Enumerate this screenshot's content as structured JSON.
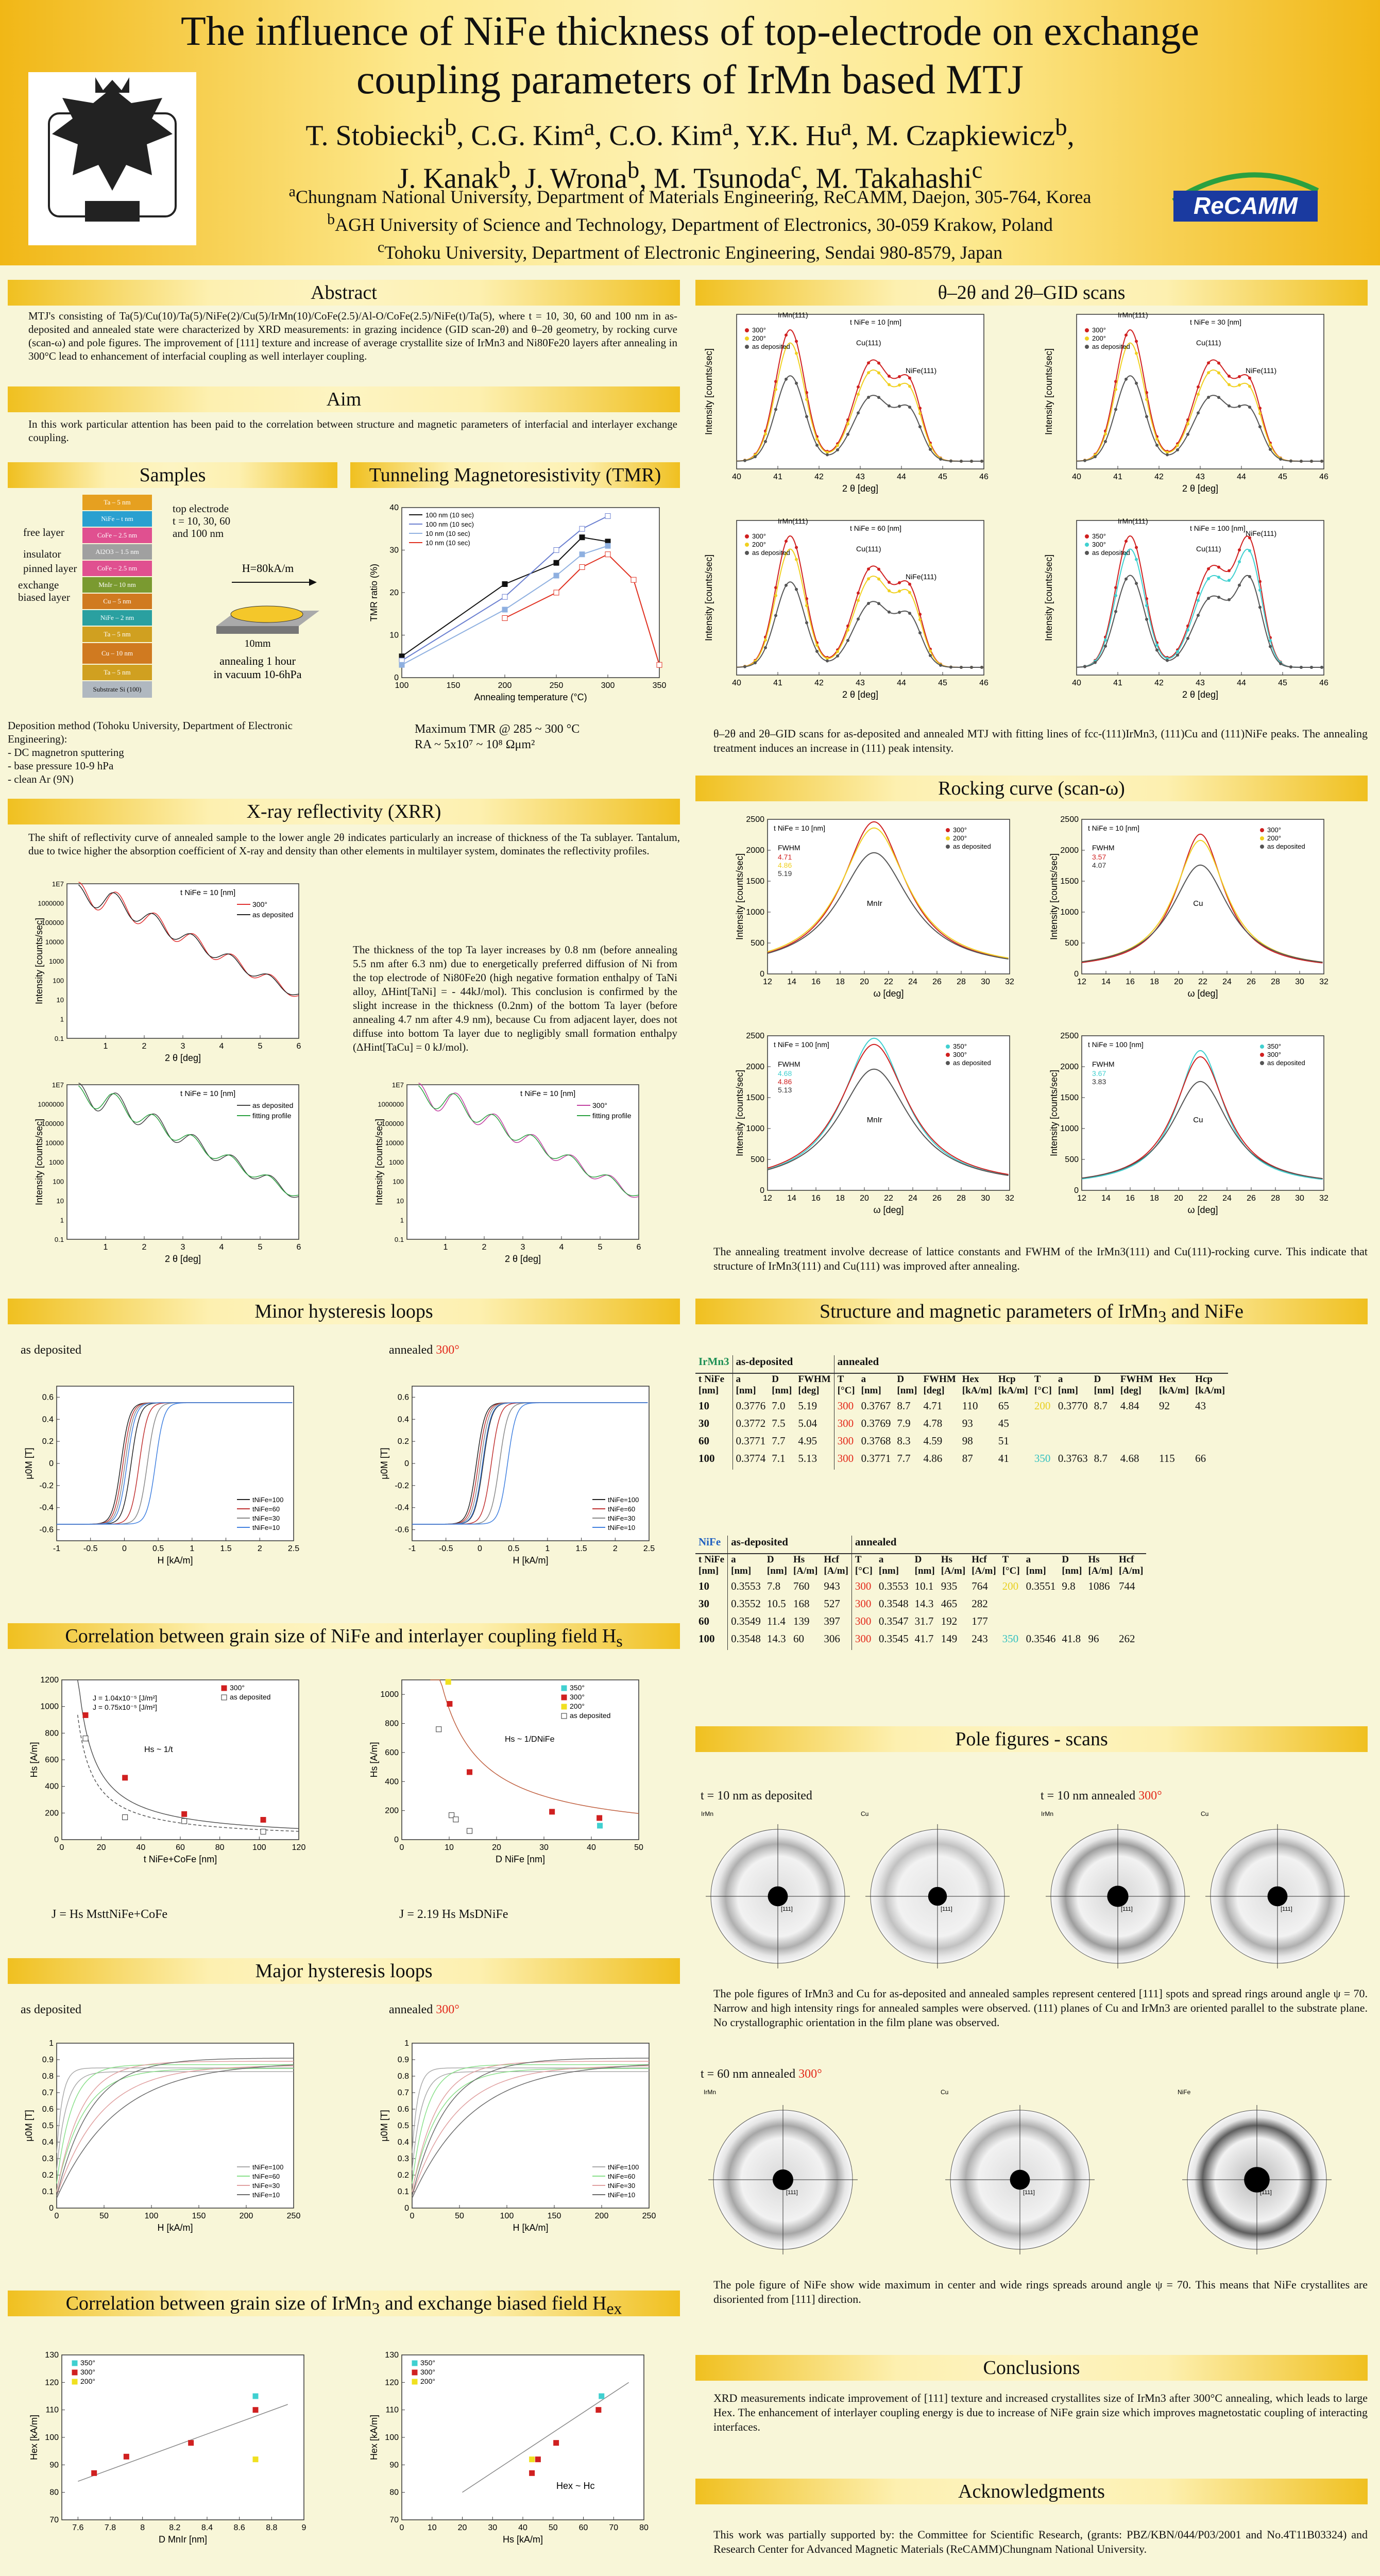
{
  "header": {
    "title_line1": "The influence of NiFe thickness of top-electrode on exchange",
    "title_line2": "coupling parameters of IrMn based MTJ",
    "authors_line1": "T. Stobiecki",
    "authors_line1_html": "T. Stobiecki<sup>b</sup>, C.G. Kim<sup>a</sup>, C.O. Kim<sup>a</sup>, Y.K. Hu<sup>a</sup>, M. Czapkiewicz<sup>b</sup>,",
    "authors_line2_html": "J. Kanak<sup>b</sup>, J. Wrona<sup>b</sup>, M. Tsunoda<sup>c</sup>, M. Takahashi<sup>c</sup>",
    "aff1_html": "<sup>a</sup>Chungnam National University, Department of Materials Engineering, ReCAMM, Daejon, 305-764, Korea",
    "aff2_html": "<sup>b</sup>AGH University of Science and Technology, Department of Electronics, 30-059 Krakow, Poland",
    "aff3_html": "<sup>c</sup>Tohoku University, Department of Electronic Engineering, Sendai 980-8579, Japan",
    "logo_text": "ReCAMM"
  },
  "sections": {
    "abstract": "Abstract",
    "aim": "Aim",
    "samples": "Samples",
    "tmr": "Tunneling Magnetoresistivity (TMR)",
    "xrr": "X-ray reflectivity (XRR)",
    "minor": "Minor hysteresis loops",
    "corr_nife": "Correlation  between grain size of NiFe and interlayer coupling field H",
    "corr_nife_sub": "s",
    "major": "Major hysteresis loops",
    "corr_irmn": "Correlation  between grain size of IrMn",
    "corr_irmn_mid": "3",
    "corr_irmn_end": " and exchange biased field H",
    "corr_irmn_sub": "ex",
    "theta": "θ–2θ and 2θ–GID scans",
    "rocking": "Rocking curve (scan-ω)",
    "structure": "Structure and magnetic parameters of IrMn",
    "structure_sub": "3",
    "structure_end": " and NiFe",
    "pole": "Pole figures - scans",
    "conclusions": "Conclusions",
    "ack": "Acknowledgments"
  },
  "text": {
    "abstract": "MTJ's consisting of Ta(5)/Cu(10)/Ta(5)/NiFe(2)/Cu(5)/IrMn(10)/CoFe(2.5)/Al-O/CoFe(2.5)/NiFe(t)/Ta(5), where t = 10, 30, 60 and 100 nm in as-deposited and annealed state were characterized by XRD measurements: in grazing incidence (GID scan-2θ) and θ–2θ geometry, by rocking curve (scan-ω) and pole figures. The improvement of [111] texture and increase of average crystallite size of IrMn3 and Ni80Fe20 layers after annealing in 300°C lead to enhancement of interfacial coupling as well interlayer coupling.",
    "aim": "In this work particular attention has been paid to the correlation between structure and magnetic parameters of interfacial and interlayer exchange coupling.",
    "deposition_title": "Deposition method (Tohoku University, Department of Electronic Engineering):",
    "deposition_1": "- DC magnetron sputtering",
    "deposition_2": "- base pressure 10-9 hPa",
    "deposition_3": "- clean Ar (9N)",
    "tmr_max": "Maximum TMR @ 285 ~ 300 °C",
    "tmr_ra": "RA ~ 5x10⁷ ~ 10⁸ Ωμm²",
    "xrr_intro": "The shift of reflectivity curve of annealed sample to the lower angle 2θ indicates particularly an increase of thickness of the Ta sublayer. Tantalum, due to twice higher the absorption coefficient of X-ray and density than other elements in multilayer system, dominates the reflectivity profiles.",
    "xrr_side": "The thickness of the top Ta layer increases by 0.8 nm (before annealing 5.5 nm after 6.3 nm) due to energetically preferred diffusion of Ni from the top electrode of Ni80Fe20 (high negative formation enthalpy of TaNi alloy, ΔHint[TaNi] = - 44kJ/mol). This conclusion is confirmed by the slight increase in the thickness (0.2nm) of the bottom Ta layer (before annealing 4.7 nm after 4.9 nm), because Cu from adjacent layer, does not diffuse into bottom Ta layer due to negligibly small formation enthalpy (ΔHint[TaCu] = 0 kJ/mol).",
    "theta_caption": "θ–2θ and 2θ–GID scans for as-deposited and annealed MTJ with fitting lines of fcc-(111)IrMn3, (111)Cu and (111)NiFe peaks. The annealing treatment induces an increase in (111) peak intensity.",
    "rocking_caption": "The annealing treatment involve decrease of lattice constants and FWHM of the IrMn3(111) and Cu(111)-rocking curve. This indicate that structure of IrMn3(111) and Cu(111) was improved after annealing.",
    "pole_caption1": "The pole figures of IrMn3 and Cu for as-deposited and annealed samples represent centered [111] spots and spread rings around angle ψ = 70. Narrow and high intensity rings for annealed samples were observed. (111) planes of Cu and IrMn3 are oriented parallel to the substrate plane. No crystallographic orientation in the film plane was observed.",
    "pole_caption2": "The pole figure of NiFe show wide maximum in center and wide rings spreads around angle ψ = 70. This means that NiFe crystallites are disoriented from [111] direction.",
    "conclusions": "XRD measurements indicate improvement of [111] texture and increased crystallites size of IrMn3 after 300°C annealing, which leads to large Hex. The enhancement of interlayer coupling energy is due to increase of NiFe grain size which improves magnetostatic coupling of interacting interfaces.",
    "ack": "This work was partially supported by: the Committee for Scientific Research, (grants: PBZ/KBN/044/P03/2001 and No.4T11B03324) and Research Center for Advanced Magnetic Materials (ReCAMM)Chungnam National University.",
    "as_deposited": "as deposited",
    "annealed": "annealed",
    "deg300": "300°",
    "j_nife": "J = Hs MsttNiFe+CoFe",
    "j_irmn": "J = 2.19 Hs MsDNiFe",
    "pole_t10_asdep": "t = 10 nm as deposited",
    "pole_t10_ann": "t = 10 nm annealed",
    "pole_t60_ann": "t = 60 nm annealed"
  },
  "samples": {
    "layers": [
      "Ta – 5 nm",
      "NiFe – t nm",
      "CoFe – 2.5 nm",
      "Al2O3 – 1.5 nm",
      "CoFe – 2.5 nm",
      "MnIr – 10 nm",
      "Cu – 5 nm",
      "NiFe – 2 nm",
      "Ta – 5 nm",
      "Cu – 10 nm",
      "Ta – 5 nm",
      "Substrate Si (100)"
    ],
    "labels": [
      "free layer",
      "insulator",
      "pinned layer",
      "exchange",
      "biased layer"
    ],
    "top_electrode": "top electrode",
    "t_values": "t = 10, 30, 60",
    "t_values2": "and 100 nm",
    "field": "H=80kA/m",
    "size": "10mm",
    "anneal1": "annealing 1 hour",
    "anneal2": "in vacuum 10-6hPa"
  },
  "chart_data": [
    {
      "id": "tmr",
      "type": "line",
      "xlabel": "Annealing temperature (°C)",
      "ylabel": "TMR ratio (%)",
      "xlim": [
        100,
        350
      ],
      "ylim": [
        0,
        40
      ],
      "series": [
        {
          "name": "100 nm (10 sec)",
          "color": "#111111",
          "x": [
            100,
            200,
            250,
            275,
            300
          ],
          "y": [
            5,
            22,
            27,
            33,
            32
          ]
        },
        {
          "name": "100 nm (10 sec)",
          "color": "#6a7fd0",
          "x": [
            100,
            200,
            250,
            275,
            300
          ],
          "y": [
            4,
            19,
            30,
            35,
            38
          ]
        },
        {
          "name": "10 nm (10 sec)",
          "color": "#8fb0e0",
          "x": [
            100,
            200,
            250,
            275,
            300
          ],
          "y": [
            3,
            16,
            24,
            29,
            31
          ]
        },
        {
          "name": "10 nm (10 sec)",
          "color": "#e03020",
          "x": [
            200,
            250,
            275,
            300,
            325,
            350
          ],
          "y": [
            14,
            20,
            26,
            29,
            23,
            3
          ]
        }
      ]
    },
    {
      "id": "struct_irmn",
      "type": "table",
      "label": "IrMn3",
      "headers": [
        "t NiFe [nm]",
        "a [nm]",
        "D [nm]",
        "FWHM [deg]",
        "T [°C]",
        "a [nm]",
        "D [nm]",
        "FWHM [deg]",
        "Hex [kA/m]",
        "Hcp [kA/m]",
        "T [°C]",
        "a [nm]",
        "D [nm]",
        "FWHM [deg]",
        "Hex [kA/m]",
        "Hcp [kA/m]"
      ],
      "rows": [
        [
          "10",
          "0.3776",
          "7.0",
          "5.19",
          "300",
          "0.3767",
          "8.7",
          "4.71",
          "110",
          "65",
          "200",
          "0.3770",
          "8.7",
          "4.84",
          "92",
          "43"
        ],
        [
          "30",
          "0.3772",
          "7.5",
          "5.04",
          "300",
          "0.3769",
          "7.9",
          "4.78",
          "93",
          "45",
          "",
          "",
          "",
          "",
          "",
          ""
        ],
        [
          "60",
          "0.3771",
          "7.7",
          "4.95",
          "300",
          "0.3768",
          "8.3",
          "4.59",
          "98",
          "51",
          "",
          "",
          "",
          "",
          "",
          ""
        ],
        [
          "100",
          "0.3774",
          "7.1",
          "5.13",
          "300",
          "0.3771",
          "7.7",
          "4.86",
          "87",
          "41",
          "350",
          "0.3763",
          "8.7",
          "4.68",
          "115",
          "66"
        ]
      ]
    },
    {
      "id": "struct_nife",
      "type": "table",
      "label": "NiFe",
      "headers": [
        "t NiFe [nm]",
        "a [nm]",
        "D [nm]",
        "Hs [A/m]",
        "Hcf [A/m]",
        "T [°C]",
        "a [nm]",
        "D [nm]",
        "Hs [A/m]",
        "Hcf [A/m]",
        "T [°C]",
        "a [nm]",
        "D [nm]",
        "Hs [A/m]",
        "Hcf [A/m]"
      ],
      "rows": [
        [
          "10",
          "0.3553",
          "7.8",
          "760",
          "943",
          "300",
          "0.3553",
          "10.1",
          "935",
          "764",
          "200",
          "0.3551",
          "9.8",
          "1086",
          "744"
        ],
        [
          "30",
          "0.3552",
          "10.5",
          "168",
          "527",
          "300",
          "0.3548",
          "14.3",
          "465",
          "282",
          "",
          "",
          "",
          "",
          ""
        ],
        [
          "60",
          "0.3549",
          "11.4",
          "139",
          "397",
          "300",
          "0.3547",
          "31.7",
          "192",
          "177",
          "",
          "",
          "",
          "",
          ""
        ],
        [
          "100",
          "0.3548",
          "14.3",
          "60",
          "306",
          "300",
          "0.3545",
          "41.7",
          "149",
          "243",
          "350",
          "0.3546",
          "41.8",
          "96",
          "262"
        ]
      ]
    }
  ],
  "headers_top": {
    "asdep": "as-deposited",
    "annealed": "annealed"
  },
  "plot_text": {
    "theta_x": "2 θ [deg]",
    "theta_y": "Intensity [counts/sec]",
    "rock_x": "ω [deg]",
    "rock_y": "Intensity [counts/sec]",
    "xrr_x": "2 θ [deg]",
    "xrr_y": "Intensity [counts/sec]",
    "hyst_x": "H [kA/m]",
    "hyst_y": "μ0M [T]",
    "hs_x": "t NiFe+CoFe [nm]",
    "hs_y": "Hs [A/m]",
    "hs2_x": "D NiFe [nm]",
    "hs2_y": "Hs [A/m]",
    "hex_x": "D MnIr [nm]",
    "hex_y": "Hex [kA/m]",
    "hex2_x": "Hs [kA/m]",
    "hex2_y": "Hex [kA/m]",
    "t10": "t NiFe = 10 [nm]",
    "t30": "t NiFe = 30 [nm]",
    "t60": "t NiFe = 60 [nm]",
    "t100": "t NiFe = 100 [nm]",
    "leg300": "300°",
    "leg200": "200°",
    "leg350": "350°",
    "legasdep": "as deposited",
    "legfit": "fitting profile",
    "irmn": "IrMn(111)",
    "cu": "Cu(111)",
    "nife": "NiFe(111)",
    "mnir": "MnIr",
    "cu2": "Cu",
    "fwhm": "FWHM",
    "hs_law": "Hs ~ 1/t",
    "hs_law2": "Hs ~ 1/DNiFe",
    "j1": "J = 1.04x10⁻⁵ [J/m²]",
    "j2": "J = 0.75x10⁻⁵ [J/m²]",
    "hex_law": "Hex ~ Hc",
    "tnife_legend": [
      "tNiFe=100",
      "tNiFe=60",
      "tNiFe=30",
      "tNiFe=10"
    ],
    "fwhm_a": "4.71",
    "fwhm_b": "4.86",
    "fwhm_c": "5.19",
    "fwhm_d": "3.57",
    "fwhm_e": "4.07",
    "fwhm_f": "4.68",
    "fwhm_g": "4.86",
    "fwhm_h": "5.13",
    "fwhm_i": "3.67",
    "fwhm_j": "3.83",
    "pole_labels": [
      "IrMn",
      "Cu",
      "IrMn",
      "Cu",
      "IrMn",
      "Cu",
      "NiFe"
    ],
    "pole_center": "[111]"
  }
}
